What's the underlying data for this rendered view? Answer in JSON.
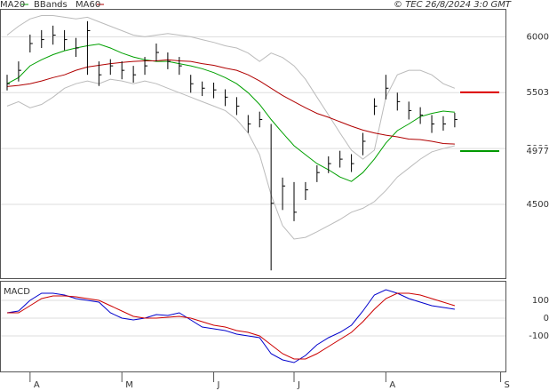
{
  "chart_data": {
    "type": "ohlc",
    "source": "© TEC 26/8/2024 3:0 GMT",
    "categories": [
      null,
      null,
      "A",
      null,
      null,
      null,
      null,
      null,
      null,
      null,
      "M",
      null,
      null,
      null,
      null,
      null,
      null,
      null,
      "J",
      null,
      null,
      null,
      null,
      null,
      null,
      "J",
      null,
      null,
      null,
      null,
      null,
      null,
      null,
      "A",
      null,
      null,
      null,
      null,
      null,
      null,
      null,
      null,
      null,
      "S"
    ],
    "high": [
      5660,
      5780,
      6020,
      6060,
      6100,
      6060,
      5990,
      6140,
      5780,
      5800,
      5780,
      5740,
      5820,
      5940,
      5860,
      5820,
      5660,
      5600,
      5590,
      5530,
      5460,
      5300,
      5330,
      5220,
      4740,
      4700,
      4700,
      4850,
      4930,
      4980,
      4950,
      5140,
      5450,
      5660,
      5500,
      5420,
      5370,
      5300,
      5290,
      5320,
      null,
      null,
      null,
      null
    ],
    "low": [
      5520,
      5600,
      5860,
      5900,
      5930,
      5880,
      5820,
      5660,
      5560,
      5660,
      5620,
      5590,
      5660,
      5780,
      5710,
      5660,
      5500,
      5470,
      5450,
      5380,
      5300,
      5140,
      5190,
      3910,
      4450,
      4350,
      4540,
      4700,
      4780,
      4830,
      4790,
      4940,
      5300,
      5440,
      5340,
      5260,
      5220,
      5140,
      5160,
      5190,
      null,
      null,
      null,
      null
    ],
    "close": [
      5580,
      5700,
      5940,
      5975,
      6015,
      5975,
      5900,
      6055,
      5660,
      5740,
      5700,
      5660,
      5740,
      5860,
      5780,
      5740,
      5580,
      5540,
      5525,
      5460,
      5380,
      5220,
      5260,
      4510,
      4665,
      4430,
      4630,
      4785,
      4865,
      4905,
      4865,
      5065,
      5380,
      5540,
      5420,
      5340,
      5300,
      5220,
      5220,
      5260,
      null,
      null,
      null,
      null
    ],
    "bar_color": "#000000",
    "series": [
      {
        "name": "MA20",
        "color": "#00a000",
        "values": [
          5580,
          5635,
          5740,
          5795,
          5840,
          5875,
          5900,
          5920,
          5935,
          5900,
          5855,
          5820,
          5795,
          5780,
          5780,
          5760,
          5740,
          5715,
          5680,
          5635,
          5580,
          5500,
          5395,
          5260,
          5140,
          5025,
          4945,
          4865,
          4810,
          4745,
          4705,
          4785,
          4905,
          5050,
          5160,
          5220,
          5285,
          5315,
          5335,
          5325,
          null,
          null,
          null,
          null
        ]
      },
      {
        "name": "BBands",
        "color": "#bbbbbb",
        "values": [
          6015,
          6095,
          6160,
          6190,
          6190,
          6175,
          6160,
          6175,
          6135,
          6095,
          6055,
          6015,
          6000,
          6015,
          6030,
          6015,
          6000,
          5975,
          5950,
          5920,
          5900,
          5855,
          5780,
          5855,
          5815,
          5740,
          5620,
          5460,
          5300,
          5140,
          4985,
          4905,
          4985,
          5460,
          5660,
          5700,
          5700,
          5660,
          5580,
          5540,
          null,
          null,
          null,
          null
        ],
        "lower": [
          5380,
          5420,
          5365,
          5395,
          5460,
          5540,
          5580,
          5605,
          5580,
          5620,
          5605,
          5580,
          5605,
          5580,
          5540,
          5500,
          5460,
          5420,
          5380,
          5340,
          5260,
          5140,
          4945,
          4585,
          4310,
          4190,
          4205,
          4255,
          4310,
          4365,
          4430,
          4465,
          4525,
          4625,
          4745,
          4825,
          4905,
          4970,
          5000,
          5025,
          null,
          null,
          null,
          null
        ]
      },
      {
        "name": "MA60",
        "color": "#b00000",
        "values": [
          5555,
          5565,
          5580,
          5605,
          5635,
          5660,
          5700,
          5730,
          5745,
          5760,
          5770,
          5780,
          5785,
          5785,
          5795,
          5785,
          5780,
          5760,
          5745,
          5720,
          5700,
          5660,
          5605,
          5540,
          5475,
          5420,
          5365,
          5315,
          5280,
          5240,
          5200,
          5165,
          5140,
          5120,
          5105,
          5085,
          5080,
          5065,
          5045,
          5040,
          null,
          null,
          null,
          null
        ]
      }
    ],
    "markers": [
      {
        "value": 5503,
        "color": "#dd0000"
      },
      {
        "value": 4977,
        "color": "#009900"
      }
    ],
    "ylim": [
      3840,
      6250
    ],
    "yticks": [
      4500,
      5000,
      5500,
      6000
    ],
    "grid": true,
    "macd": {
      "title": "MACD",
      "ylim": [
        -300,
        210
      ],
      "yticks": [
        100,
        0,
        -100
      ],
      "series": [
        {
          "color": "#0000cc",
          "values": [
            30,
            40,
            100,
            140,
            140,
            130,
            110,
            100,
            90,
            30,
            0,
            -10,
            0,
            20,
            15,
            30,
            -10,
            -50,
            -60,
            -70,
            -90,
            -100,
            -110,
            -200,
            -235,
            -250,
            -210,
            -150,
            -110,
            -80,
            -40,
            40,
            130,
            160,
            140,
            110,
            90,
            70,
            60,
            50,
            null,
            null,
            null,
            null
          ]
        },
        {
          "color": "#cc0000",
          "values": [
            30,
            30,
            70,
            110,
            125,
            125,
            120,
            110,
            100,
            70,
            40,
            10,
            0,
            0,
            5,
            10,
            0,
            -20,
            -40,
            -50,
            -70,
            -80,
            -100,
            -150,
            -200,
            -230,
            -230,
            -200,
            -160,
            -120,
            -80,
            -20,
            50,
            110,
            140,
            140,
            130,
            110,
            90,
            70,
            null,
            null,
            null,
            null
          ]
        }
      ]
    }
  }
}
